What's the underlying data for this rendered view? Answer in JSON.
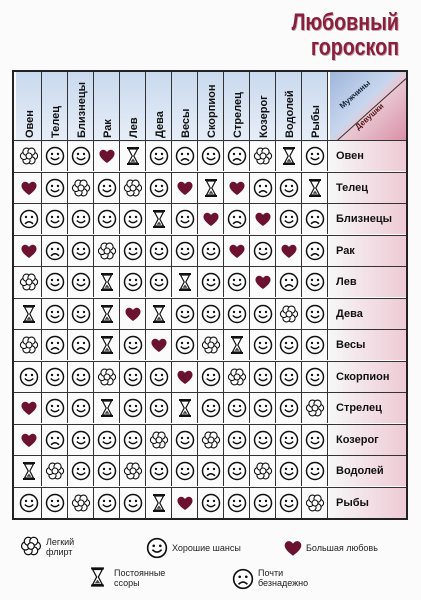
{
  "title": {
    "line1": "Любовный",
    "line2": "гороскоп"
  },
  "corner": {
    "men": "Мужчины",
    "women": "Девушки"
  },
  "columns": [
    "Овен",
    "Телец",
    "Близнецы",
    "Рак",
    "Лев",
    "Дева",
    "Весы",
    "Скорпион",
    "Стрелец",
    "Козерог",
    "Водолей",
    "Рыбы"
  ],
  "rows": [
    "Овен",
    "Телец",
    "Близнецы",
    "Рак",
    "Лев",
    "Дева",
    "Весы",
    "Скорпион",
    "Стрелец",
    "Козерог",
    "Водолей",
    "Рыбы"
  ],
  "grid": [
    [
      "flower",
      "happy",
      "happy",
      "heart",
      "hourglass",
      "happy",
      "sad",
      "happy",
      "sad",
      "flower",
      "hourglass",
      "happy"
    ],
    [
      "heart",
      "happy",
      "flower",
      "happy",
      "flower",
      "happy",
      "heart",
      "hourglass",
      "heart",
      "sad",
      "happy",
      "hourglass"
    ],
    [
      "sad",
      "happy",
      "happy",
      "happy",
      "happy",
      "hourglass",
      "happy",
      "heart",
      "sad",
      "heart",
      "happy",
      "sad"
    ],
    [
      "heart",
      "sad",
      "happy",
      "flower",
      "happy",
      "happy",
      "happy",
      "happy",
      "heart",
      "happy",
      "heart",
      "sad"
    ],
    [
      "flower",
      "happy",
      "happy",
      "hourglass",
      "happy",
      "happy",
      "hourglass",
      "happy",
      "happy",
      "heart",
      "sad",
      "happy"
    ],
    [
      "hourglass",
      "happy",
      "happy",
      "hourglass",
      "heart",
      "hourglass",
      "happy",
      "happy",
      "happy",
      "happy",
      "flower",
      "happy"
    ],
    [
      "flower",
      "sad",
      "sad",
      "hourglass",
      "happy",
      "heart",
      "happy",
      "flower",
      "hourglass",
      "happy",
      "happy",
      "happy"
    ],
    [
      "happy",
      "happy",
      "happy",
      "flower",
      "happy",
      "happy",
      "heart",
      "happy",
      "flower",
      "happy",
      "happy",
      "happy"
    ],
    [
      "heart",
      "happy",
      "happy",
      "hourglass",
      "happy",
      "happy",
      "hourglass",
      "happy",
      "happy",
      "happy",
      "happy",
      "flower"
    ],
    [
      "heart",
      "sad",
      "happy",
      "happy",
      "happy",
      "flower",
      "happy",
      "flower",
      "happy",
      "happy",
      "happy",
      "happy"
    ],
    [
      "hourglass",
      "flower",
      "happy",
      "happy",
      "flower",
      "happy",
      "happy",
      "sad",
      "happy",
      "flower",
      "happy",
      "happy"
    ],
    [
      "happy",
      "happy",
      "flower",
      "happy",
      "happy",
      "hourglass",
      "heart",
      "happy",
      "happy",
      "happy",
      "happy",
      "flower"
    ]
  ],
  "legend": {
    "flower": "Легкий флирт",
    "happy": "Хорошие шансы",
    "heart": "Большая любовь",
    "hourglass": "Постоянные ссоры",
    "sad": "Почти безнадежно"
  }
}
